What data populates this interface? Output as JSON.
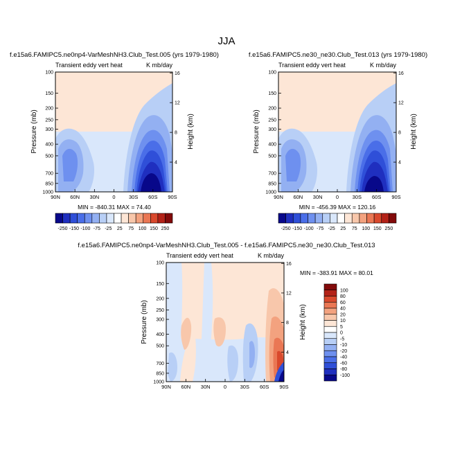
{
  "figure": {
    "title": "JJA"
  },
  "colors": {
    "cool": [
      "#08088a",
      "#1f2fbf",
      "#2f4fd8",
      "#4a6ee8",
      "#6e90ef",
      "#93b0f2",
      "#b8cff6",
      "#d9e7fb"
    ],
    "warm": [
      "#fde6d6",
      "#f8c7ab",
      "#f3a27f",
      "#ea7754",
      "#d9492d",
      "#b32218",
      "#820a0a"
    ]
  },
  "chart_data": [
    {
      "type": "heatmap",
      "title": "f.e15a6.FAMIPC5.ne0np4-VarMeshNH3.Club_Test.005 (yrs 1979-1980)",
      "subtitle_left": "Transient eddy vert heat",
      "subtitle_right": "K mb/day",
      "ylabel": "Pressure (mb)",
      "ylabel_right": "Height (km)",
      "x_ticks": [
        "90N",
        "60N",
        "30N",
        "0",
        "30S",
        "60S",
        "90S"
      ],
      "y_ticks": [
        "100",
        "150",
        "200",
        "250",
        "300",
        "400",
        "500",
        "700",
        "850",
        "1000"
      ],
      "y_ticks_right": [
        "16",
        "12",
        "8",
        "4"
      ],
      "stats": "MIN = -840.31   MAX = 74.40",
      "colorbar_labels": [
        "-250",
        "-150",
        "-100",
        "-75",
        "-25",
        "25",
        "75",
        "100",
        "150",
        "250"
      ]
    },
    {
      "type": "heatmap",
      "title": "f.e15a6.FAMIPC5.ne30_ne30.Club_Test.013 (yrs 1979-1980)",
      "subtitle_left": "Transient eddy vert heat",
      "subtitle_right": "K mb/day",
      "ylabel": "Pressure (mb)",
      "ylabel_right": "Height (km)",
      "x_ticks": [
        "90N",
        "60N",
        "30N",
        "0",
        "30S",
        "60S",
        "90S"
      ],
      "y_ticks": [
        "100",
        "150",
        "200",
        "250",
        "300",
        "400",
        "500",
        "700",
        "850",
        "1000"
      ],
      "y_ticks_right": [
        "16",
        "12",
        "8",
        "4"
      ],
      "stats": "MIN = -456.39   MAX = 120.16",
      "colorbar_labels": [
        "-250",
        "-150",
        "-100",
        "-75",
        "-25",
        "25",
        "75",
        "100",
        "150",
        "250"
      ]
    },
    {
      "type": "heatmap",
      "title": "f.e15a6.FAMIPC5.ne0np4-VarMeshNH3.Club_Test.005 - f.e15a6.FAMIPC5.ne30_ne30.Club_Test.013",
      "subtitle_left": "Transient eddy vert heat",
      "subtitle_right": "K mb/day",
      "ylabel": "Pressure (mb)",
      "ylabel_right": "Height (km)",
      "x_ticks": [
        "90N",
        "60N",
        "30N",
        "0",
        "30S",
        "60S",
        "90S"
      ],
      "y_ticks": [
        "100",
        "150",
        "200",
        "250",
        "300",
        "400",
        "500",
        "700",
        "850",
        "1000"
      ],
      "y_ticks_right": [
        "16",
        "12",
        "8",
        "4"
      ],
      "stats": "MIN = -383.91   MAX =  80.01",
      "colorbar_labels": [
        "100",
        "80",
        "60",
        "40",
        "20",
        "10",
        "5",
        "0",
        "-5",
        "-10",
        "-20",
        "-40",
        "-60",
        "-80",
        "-100"
      ]
    }
  ]
}
